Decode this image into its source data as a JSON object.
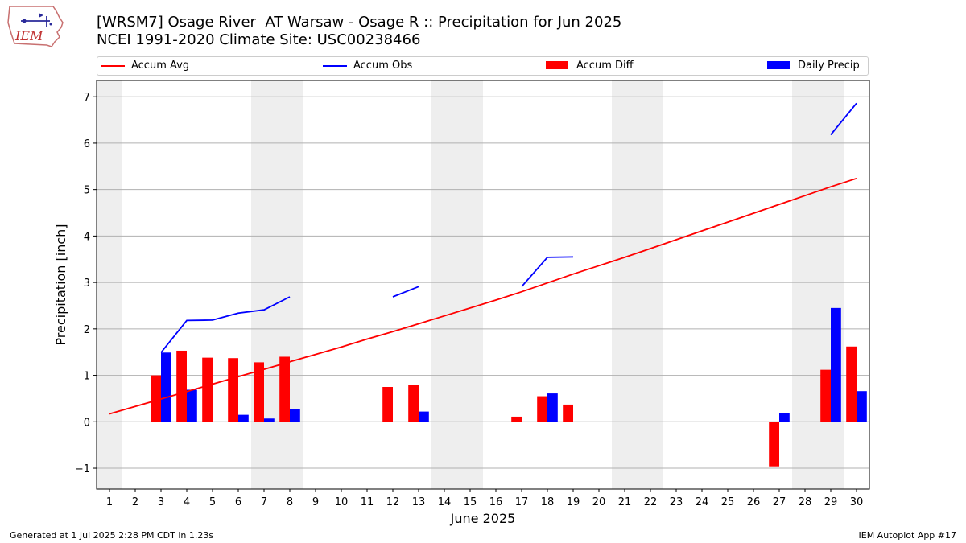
{
  "header": {
    "logo_text": "IEM",
    "title_line1": "[WRSM7] Osage River  AT Warsaw - Osage R :: Precipitation for Jun 2025",
    "title_line2": "NCEI 1991-2020 Climate Site: USC00238466"
  },
  "legend": {
    "items": [
      {
        "label": "Accum Avg",
        "kind": "line",
        "color": "#ff0000"
      },
      {
        "label": "Accum Obs",
        "kind": "line",
        "color": "#0000ff"
      },
      {
        "label": "Accum Diff",
        "kind": "bar",
        "color": "#ff0000"
      },
      {
        "label": "Daily Precip",
        "kind": "bar",
        "color": "#0000ff"
      }
    ]
  },
  "footer": {
    "left": "Generated at 1 Jul 2025 2:28 PM CDT in 1.23s",
    "right": "IEM Autoplot App #17"
  },
  "chart_data": {
    "type": "bar",
    "title": "[WRSM7] Osage River  AT Warsaw - Osage R :: Precipitation for Jun 2025",
    "subtitle": "NCEI 1991-2020 Climate Site: USC00238466",
    "xlabel": "June 2025",
    "ylabel": "Precipitation [inch]",
    "x": [
      1,
      2,
      3,
      4,
      5,
      6,
      7,
      8,
      9,
      10,
      11,
      12,
      13,
      14,
      15,
      16,
      17,
      18,
      19,
      20,
      21,
      22,
      23,
      24,
      25,
      26,
      27,
      28,
      29,
      30
    ],
    "xlim": [
      0.5,
      30.5
    ],
    "ylim": [
      -1.45,
      7.35
    ],
    "yticks": [
      -1,
      0,
      1,
      2,
      3,
      4,
      5,
      6,
      7
    ],
    "ytick_labels": [
      "−1",
      "0",
      "1",
      "2",
      "3",
      "4",
      "5",
      "6",
      "7"
    ],
    "grid": "horizontal",
    "legend_position": "top",
    "weekend_shading": [
      [
        1,
        1
      ],
      [
        7,
        8
      ],
      [
        14,
        15
      ],
      [
        21,
        22
      ],
      [
        28,
        29
      ]
    ],
    "series": [
      {
        "name": "Accum Avg",
        "kind": "line",
        "color": "#ff0000",
        "values": [
          0.17,
          0.33,
          0.49,
          0.65,
          0.81,
          0.97,
          1.13,
          1.29,
          1.45,
          1.61,
          1.78,
          1.94,
          2.11,
          2.28,
          2.45,
          2.62,
          2.8,
          2.99,
          3.18,
          3.36,
          3.54,
          3.73,
          3.92,
          4.11,
          4.3,
          4.49,
          4.68,
          4.87,
          5.06,
          5.24
        ]
      },
      {
        "name": "Accum Obs",
        "kind": "line",
        "color": "#0000ff",
        "values": [
          null,
          null,
          1.49,
          2.18,
          2.19,
          2.34,
          2.41,
          2.69,
          null,
          null,
          null,
          2.69,
          2.91,
          null,
          null,
          null,
          2.91,
          3.54,
          3.55,
          null,
          null,
          null,
          null,
          null,
          null,
          null,
          null,
          null,
          6.18,
          6.86
        ]
      },
      {
        "name": "Accum Diff",
        "kind": "bar",
        "color": "#ff0000",
        "values": [
          null,
          null,
          1.0,
          1.53,
          1.38,
          1.37,
          1.28,
          1.4,
          null,
          null,
          null,
          0.75,
          0.8,
          null,
          null,
          null,
          0.11,
          0.55,
          0.37,
          null,
          null,
          null,
          null,
          null,
          null,
          null,
          -0.96,
          null,
          1.12,
          1.62
        ]
      },
      {
        "name": "Daily Precip",
        "kind": "bar",
        "color": "#0000ff",
        "values": [
          null,
          null,
          1.49,
          0.69,
          null,
          0.15,
          0.07,
          0.28,
          null,
          null,
          null,
          null,
          0.22,
          null,
          null,
          null,
          null,
          0.61,
          null,
          null,
          null,
          null,
          null,
          null,
          null,
          null,
          0.19,
          null,
          2.45,
          0.66
        ]
      }
    ]
  }
}
